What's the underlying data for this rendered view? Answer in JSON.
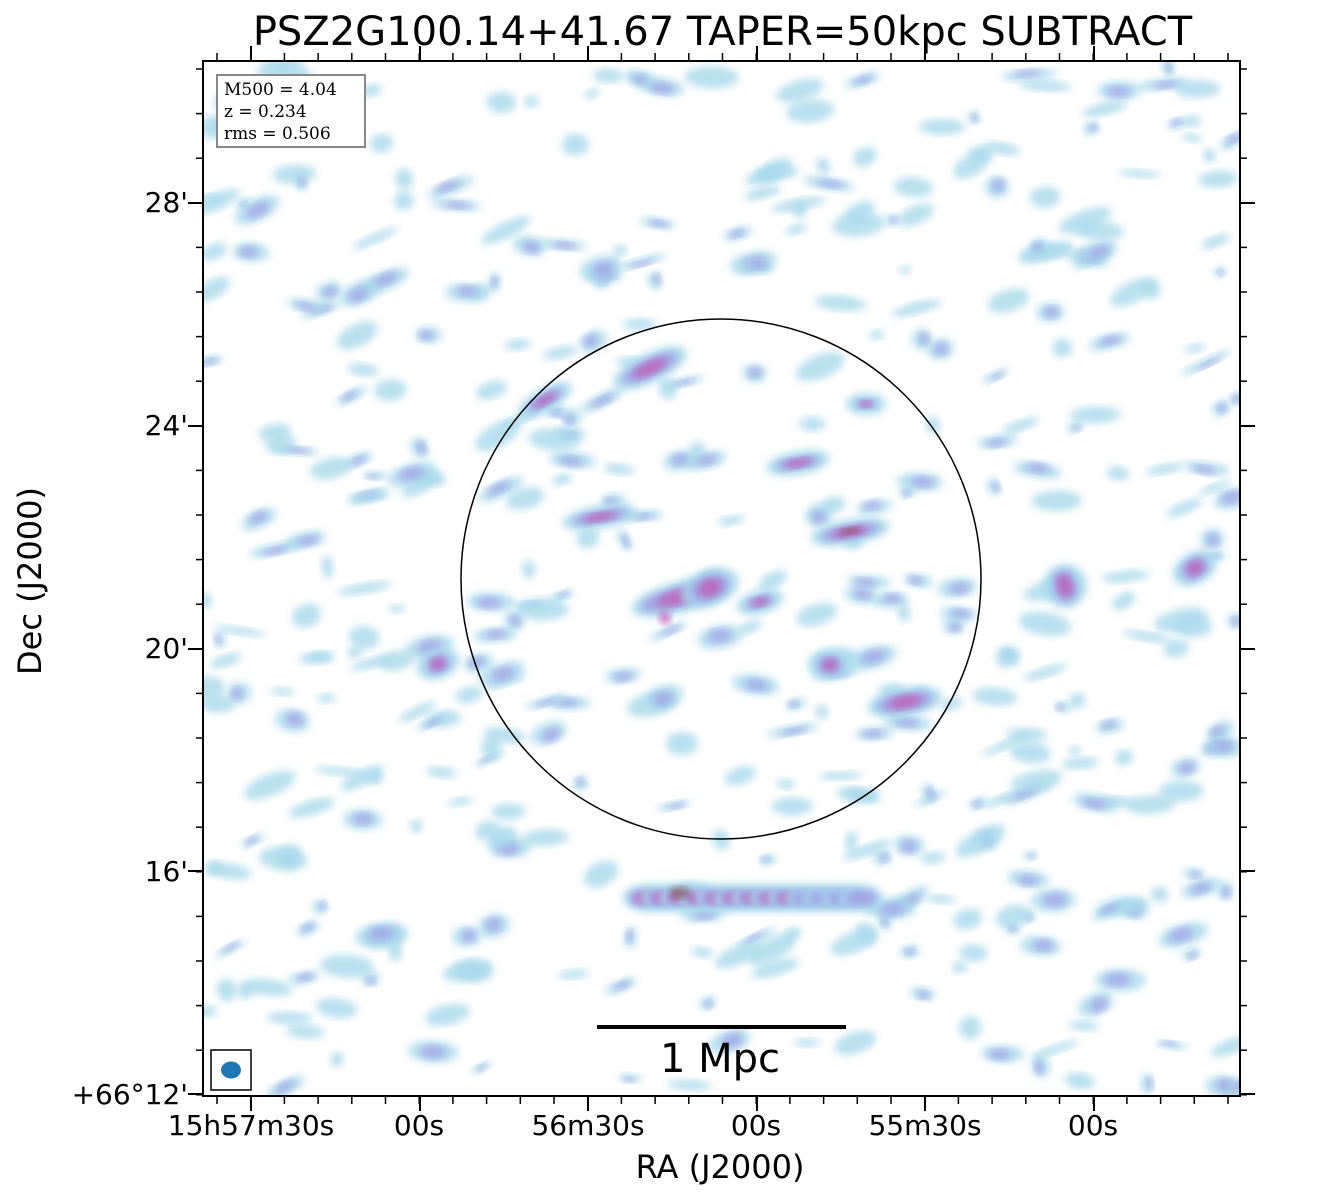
{
  "title": "PSZ2G100.14+41.67 TAPER=50kpc SUBTRACT",
  "stats": {
    "m500": "M500 = 4.04",
    "z": "z = 0.234",
    "rms": "rms = 0.506"
  },
  "axes": {
    "x_title": "RA (J2000)",
    "y_title": "Dec (J2000)",
    "x_ticks": [
      "15h57m30s",
      "00s",
      "56m30s",
      "00s",
      "55m30s",
      "00s"
    ],
    "y_ticks": [
      "28'",
      "24'",
      "20'",
      "16'",
      "+66°12'"
    ]
  },
  "scalebar": {
    "label": "1 Mpc"
  },
  "colors": {
    "faint_emission": "#a8d8ea",
    "mid_emission": "#9f9fe6",
    "strong_emission": "#c060b8",
    "peak_emission": "#7a3a30",
    "beam": "#1f77b4",
    "circle": "#000000"
  },
  "features": {
    "circle": "r500 circle centered on cluster",
    "beam_icon": "beam-ellipse-icon"
  }
}
